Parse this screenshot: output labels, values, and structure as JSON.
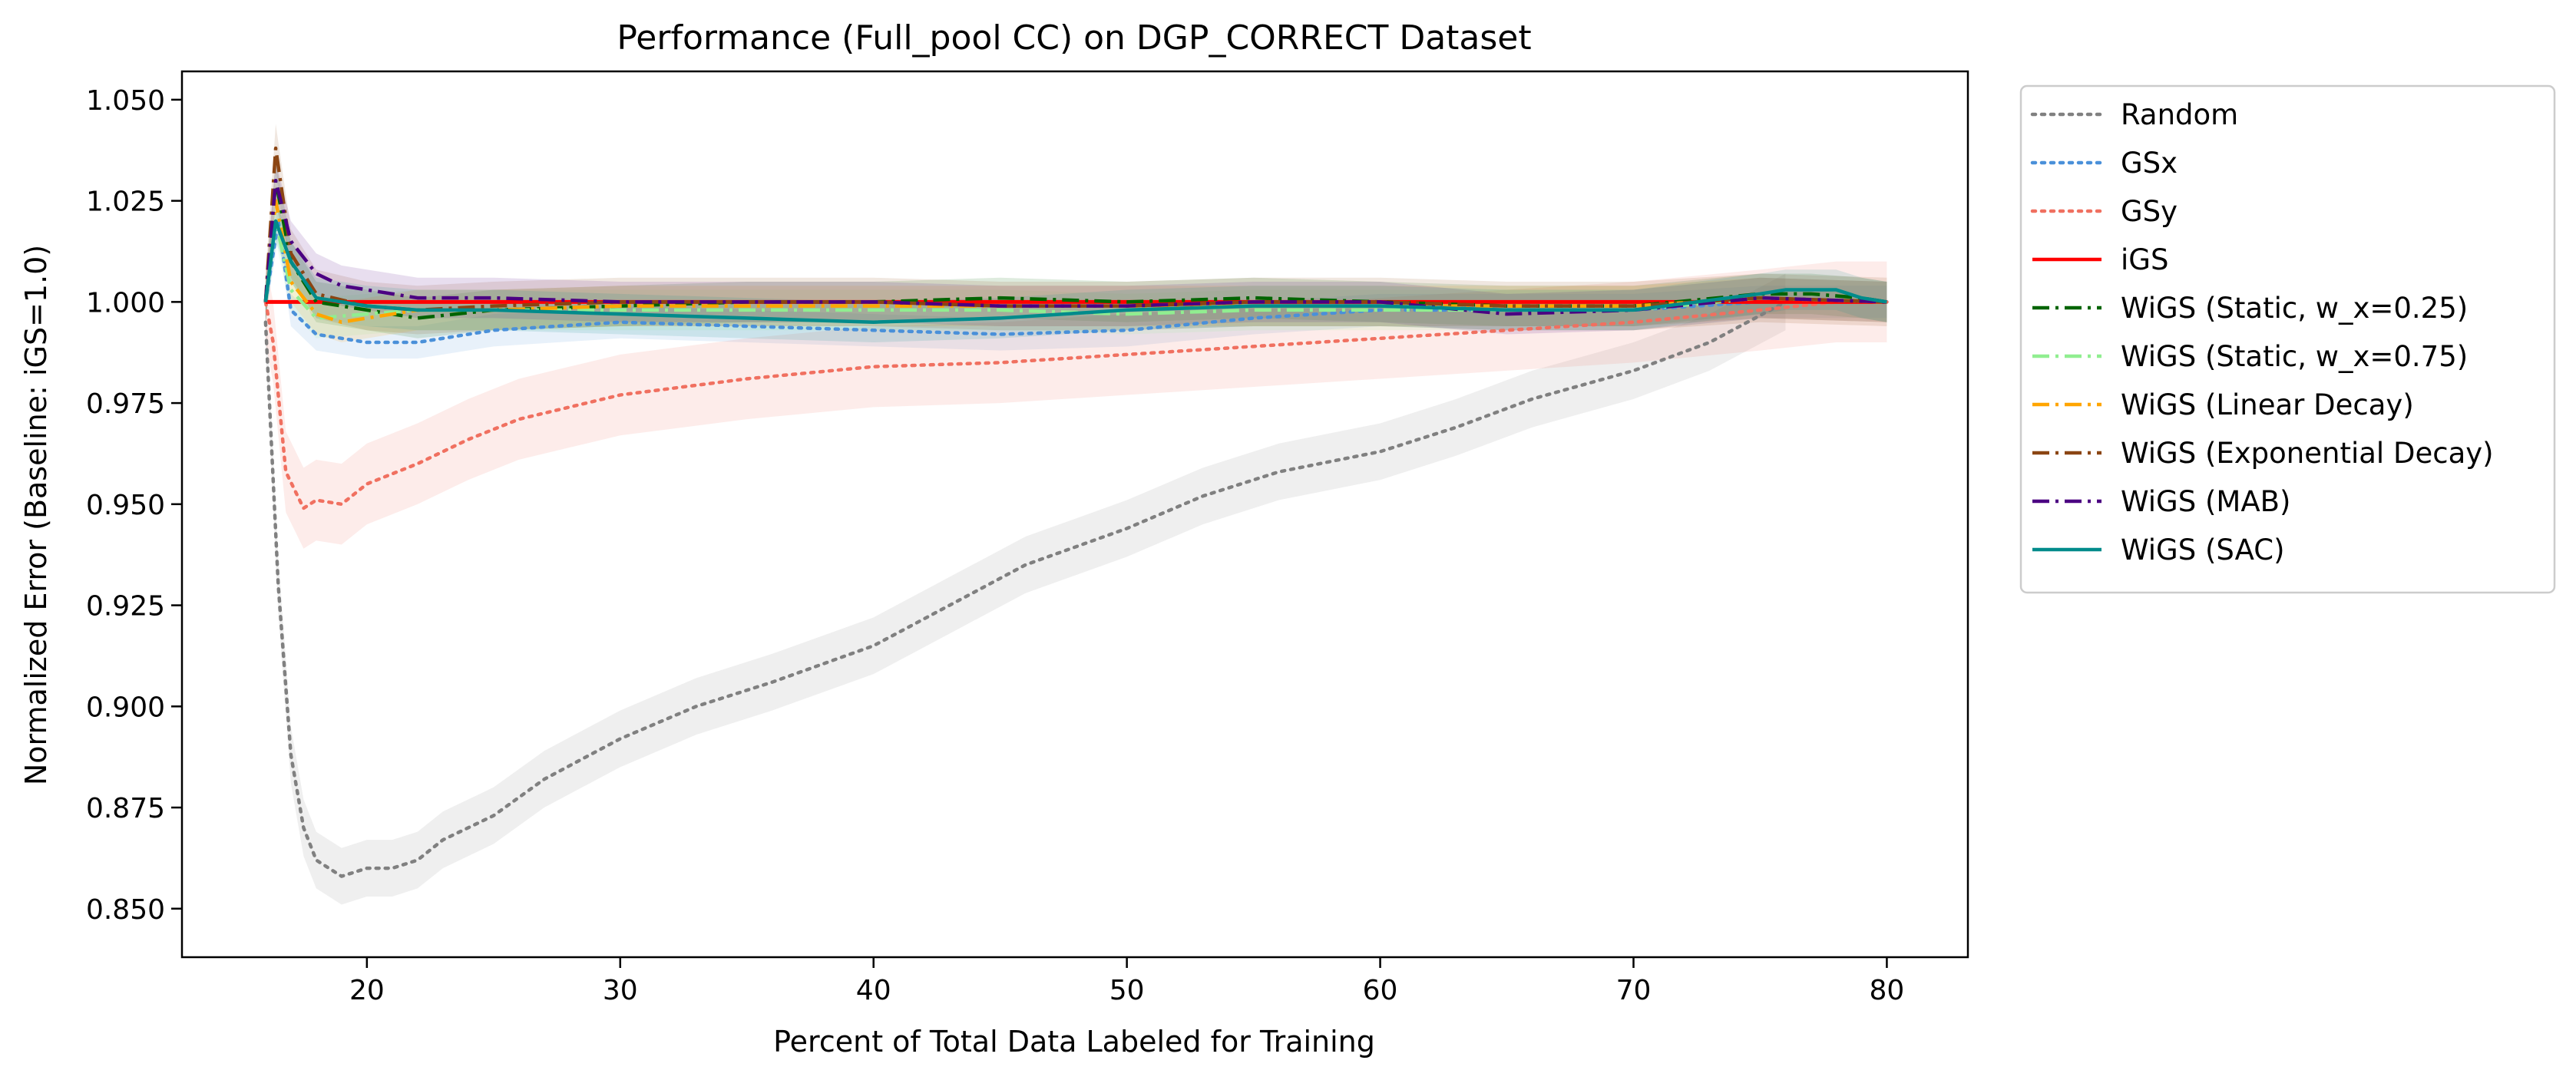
{
  "chart_data": {
    "type": "line",
    "title": "Performance (Full_pool CC) on DGP_CORRECT Dataset",
    "xlabel": "Percent of Total Data Labeled for Training",
    "ylabel": "Normalized Error (Baseline: iGS=1.0)",
    "xlim": [
      12.7,
      83.2
    ],
    "ylim": [
      0.838,
      1.057
    ],
    "xticks": [
      20,
      30,
      40,
      50,
      60,
      70,
      80
    ],
    "yticks": [
      0.85,
      0.875,
      0.9,
      0.925,
      0.95,
      0.975,
      1.0,
      1.025,
      1.05
    ],
    "xtick_labels": [
      "20",
      "30",
      "40",
      "50",
      "60",
      "70",
      "80"
    ],
    "ytick_labels": [
      "0.850",
      "0.875",
      "0.900",
      "0.925",
      "0.950",
      "0.975",
      "1.000",
      "1.025",
      "1.050"
    ],
    "grid": false,
    "legend_position": "outside-right",
    "series": [
      {
        "name": "Random",
        "color": "#808080",
        "style": "dotted",
        "band": 0.007,
        "x": [
          16,
          16.5,
          17,
          17.5,
          18,
          19,
          20,
          21,
          22,
          23,
          25,
          27,
          30,
          33,
          36,
          40,
          43,
          46,
          50,
          53,
          56,
          60,
          63,
          66,
          70,
          73,
          76
        ],
        "y": [
          0.995,
          0.93,
          0.888,
          0.87,
          0.862,
          0.858,
          0.86,
          0.86,
          0.862,
          0.867,
          0.873,
          0.882,
          0.892,
          0.9,
          0.906,
          0.915,
          0.925,
          0.935,
          0.944,
          0.952,
          0.958,
          0.963,
          0.969,
          0.976,
          0.983,
          0.99,
          1.0
        ]
      },
      {
        "name": "GSx",
        "color": "#4a90d9",
        "style": "dotted",
        "band": 0.004,
        "x": [
          16,
          16.5,
          17,
          18,
          20,
          22,
          25,
          30,
          35,
          40,
          45,
          50,
          55,
          60,
          65,
          70,
          75,
          80
        ],
        "y": [
          1.0,
          1.02,
          0.998,
          0.992,
          0.99,
          0.99,
          0.993,
          0.995,
          0.994,
          0.993,
          0.992,
          0.993,
          0.996,
          0.998,
          0.998,
          0.998,
          1.0,
          1.0
        ]
      },
      {
        "name": "GSy",
        "color": "#f07060",
        "style": "dotted",
        "band": 0.01,
        "x": [
          16,
          16.3,
          16.8,
          17.5,
          18,
          19,
          20,
          22,
          24,
          26,
          28,
          30,
          35,
          40,
          45,
          50,
          55,
          60,
          65,
          70,
          75,
          78,
          80
        ],
        "y": [
          1.0,
          0.99,
          0.958,
          0.949,
          0.951,
          0.95,
          0.955,
          0.96,
          0.966,
          0.971,
          0.974,
          0.977,
          0.981,
          0.984,
          0.985,
          0.987,
          0.989,
          0.991,
          0.993,
          0.995,
          0.998,
          1.0,
          1.0
        ]
      },
      {
        "name": "iGS",
        "color": "#ff0000",
        "style": "solid",
        "band": 0,
        "x": [
          16,
          80
        ],
        "y": [
          1.0,
          1.0
        ]
      },
      {
        "name": "WiGS (Static, w_x=0.25)",
        "color": "#006400",
        "style": "dashdot",
        "band": 0.005,
        "x": [
          16,
          16.4,
          17,
          18,
          20,
          22,
          25,
          30,
          35,
          40,
          45,
          50,
          55,
          60,
          65,
          70,
          75,
          77,
          79,
          80
        ],
        "y": [
          1.0,
          1.03,
          1.01,
          1.0,
          0.998,
          0.996,
          0.998,
          0.999,
          1.0,
          1.0,
          1.001,
          1.0,
          1.001,
          1.0,
          0.999,
          0.999,
          1.002,
          1.002,
          1.001,
          1.0
        ]
      },
      {
        "name": "WiGS (Static, w_x=0.75)",
        "color": "#90ee90",
        "style": "dashdot",
        "band": 0.005,
        "x": [
          16,
          16.4,
          17,
          18,
          20,
          22,
          25,
          30,
          35,
          40,
          45,
          50,
          55,
          60,
          65,
          70,
          75,
          80
        ],
        "y": [
          1.0,
          1.02,
          1.003,
          0.996,
          0.997,
          0.998,
          0.998,
          0.998,
          0.998,
          0.998,
          0.998,
          0.997,
          0.998,
          0.998,
          0.998,
          0.998,
          1.001,
          1.0
        ]
      },
      {
        "name": "WiGS (Linear Decay)",
        "color": "#ffa500",
        "style": "dashdot",
        "band": 0.005,
        "x": [
          16,
          16.4,
          17,
          18,
          19,
          20,
          22,
          25,
          30,
          35,
          40,
          45,
          50,
          55,
          60,
          65,
          70,
          75,
          80
        ],
        "y": [
          1.0,
          1.025,
          1.005,
          0.997,
          0.995,
          0.996,
          0.998,
          0.998,
          0.999,
          0.999,
          0.999,
          0.999,
          0.999,
          0.999,
          0.999,
          0.999,
          0.999,
          1.001,
          1.0
        ]
      },
      {
        "name": "WiGS (Exponential Decay)",
        "color": "#8b4513",
        "style": "dashdot",
        "band": 0.006,
        "x": [
          16,
          16.4,
          17,
          18,
          20,
          22,
          25,
          30,
          35,
          40,
          45,
          50,
          55,
          60,
          65,
          70,
          75,
          80
        ],
        "y": [
          1.0,
          1.038,
          1.012,
          1.002,
          0.999,
          0.998,
          0.999,
          1.0,
          1.0,
          1.0,
          0.999,
          0.999,
          1.0,
          1.0,
          0.999,
          0.999,
          1.001,
          1.0
        ]
      },
      {
        "name": "WiGS (MAB)",
        "color": "#4b0082",
        "style": "dashdot",
        "band": 0.005,
        "x": [
          16,
          16.4,
          17,
          18,
          19,
          20,
          22,
          25,
          30,
          35,
          40,
          45,
          50,
          55,
          60,
          65,
          70,
          75,
          80
        ],
        "y": [
          1.0,
          1.03,
          1.015,
          1.007,
          1.004,
          1.003,
          1.001,
          1.001,
          1.0,
          1.0,
          1.0,
          0.999,
          0.999,
          1.0,
          1.0,
          0.997,
          0.998,
          1.001,
          1.0
        ]
      },
      {
        "name": "WiGS (SAC)",
        "color": "#008b8b",
        "style": "solid",
        "band": 0.005,
        "x": [
          16,
          16.4,
          17,
          18,
          19,
          20,
          22,
          25,
          30,
          35,
          40,
          45,
          50,
          55,
          60,
          65,
          70,
          75,
          76,
          78,
          79,
          80
        ],
        "y": [
          1.0,
          1.02,
          1.01,
          1.001,
          1.0,
          0.999,
          0.998,
          0.998,
          0.997,
          0.996,
          0.995,
          0.996,
          0.998,
          0.999,
          0.999,
          0.998,
          0.998,
          1.002,
          1.003,
          1.003,
          1.001,
          1.0
        ]
      }
    ]
  }
}
